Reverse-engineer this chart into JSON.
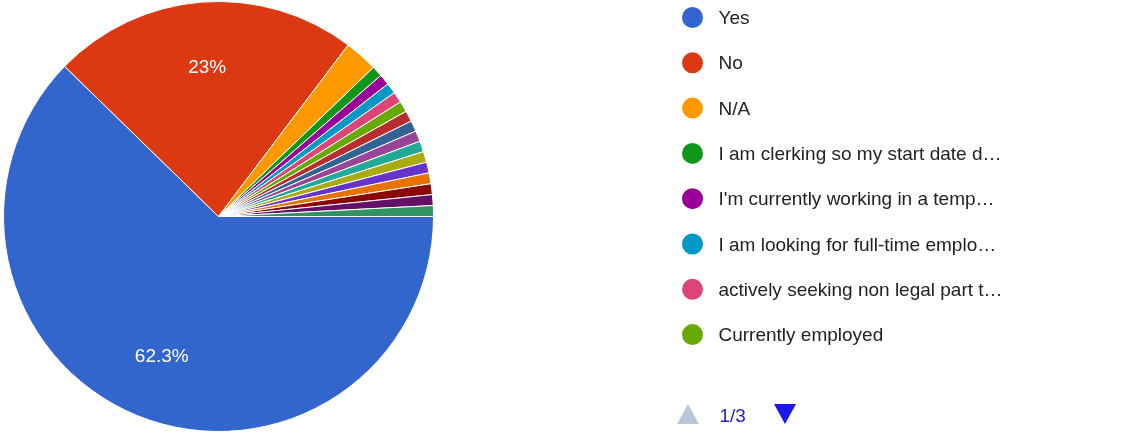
{
  "chart_data": {
    "type": "pie",
    "categories": [
      "Yes",
      "No",
      "N/A",
      "I am clerking so my start date d…",
      "I'm currently working in a temp…",
      "I am looking for full-time emplo…",
      "actively seeking non legal part t…",
      "Currently employed",
      null,
      null,
      null,
      null,
      null,
      null,
      null,
      null,
      null,
      null
    ],
    "values": [
      62.3,
      23,
      2.5,
      0.813,
      0.813,
      0.813,
      0.813,
      0.813,
      0.813,
      0.813,
      0.813,
      0.813,
      0.813,
      0.813,
      0.813,
      0.813,
      0.813,
      0.813
    ],
    "colors": [
      "#3366cc",
      "#dc3912",
      "#ff9900",
      "#109618",
      "#990099",
      "#0099c6",
      "#dd4477",
      "#66aa00",
      "#b82e2e",
      "#316395",
      "#994499",
      "#22aa99",
      "#aaaa11",
      "#6633cc",
      "#e67300",
      "#8b0707",
      "#651067",
      "#329262"
    ],
    "value_labels": [
      "62.3%",
      "23%",
      null,
      null,
      null,
      null,
      null,
      null,
      null,
      null,
      null,
      null,
      null,
      null,
      null,
      null,
      null,
      null
    ],
    "legend": "right",
    "annotations": [
      "1/3"
    ]
  }
}
